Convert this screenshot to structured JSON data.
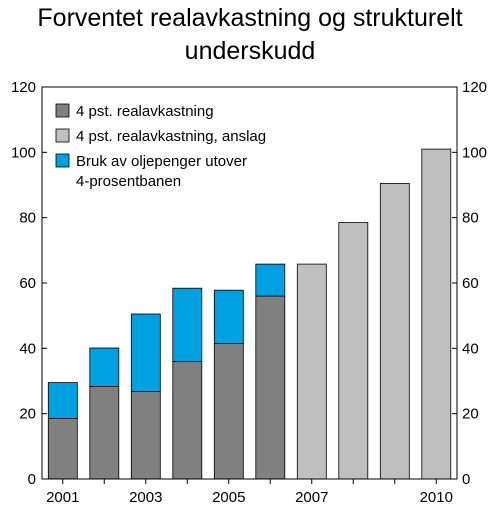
{
  "title": {
    "line1": "Forventet realavkastning og strukturelt",
    "line2": "underskudd"
  },
  "chart_data": {
    "type": "bar",
    "stacked": true,
    "title": "Forventet realavkastning og strukturelt underskudd",
    "xlabel": "",
    "ylabel": "",
    "ylim": [
      0,
      120
    ],
    "yticks": [
      0,
      20,
      40,
      60,
      80,
      100,
      120
    ],
    "y_axis_both_sides": true,
    "grid": false,
    "legend_position": "top-left",
    "categories": [
      "2001",
      "2002",
      "2003",
      "2004",
      "2005",
      "2006",
      "2007",
      "2008",
      "2009",
      "2010"
    ],
    "x_tick_labels": [
      "2001",
      "",
      "2003",
      "",
      "2005",
      "",
      "2007",
      "",
      "",
      "2010"
    ],
    "series": [
      {
        "name": "4 pst. realavkastning",
        "color": "#808080",
        "values": [
          18.5,
          28.3,
          26.8,
          36.0,
          41.5,
          56.0,
          null,
          null,
          null,
          null
        ]
      },
      {
        "name": "4 pst. realavkastning, anslag",
        "color": "#bfbfbf",
        "values": [
          null,
          null,
          null,
          null,
          null,
          null,
          65.8,
          78.5,
          90.5,
          101.0
        ]
      },
      {
        "name": "Bruk av oljepenger utover 4-prosentbanen",
        "color": "#00a0e1",
        "values": [
          11.0,
          11.8,
          23.7,
          22.4,
          16.3,
          9.8,
          null,
          null,
          null,
          null
        ]
      }
    ],
    "legend": [
      {
        "label": "4 pst. realavkastning",
        "color": "#808080"
      },
      {
        "label": "4 pst. realavkastning, anslag",
        "color": "#bfbfbf"
      },
      {
        "label": "Bruk av oljepenger utover",
        "label2": "4-prosentbanen",
        "color": "#00a0e1"
      }
    ]
  }
}
